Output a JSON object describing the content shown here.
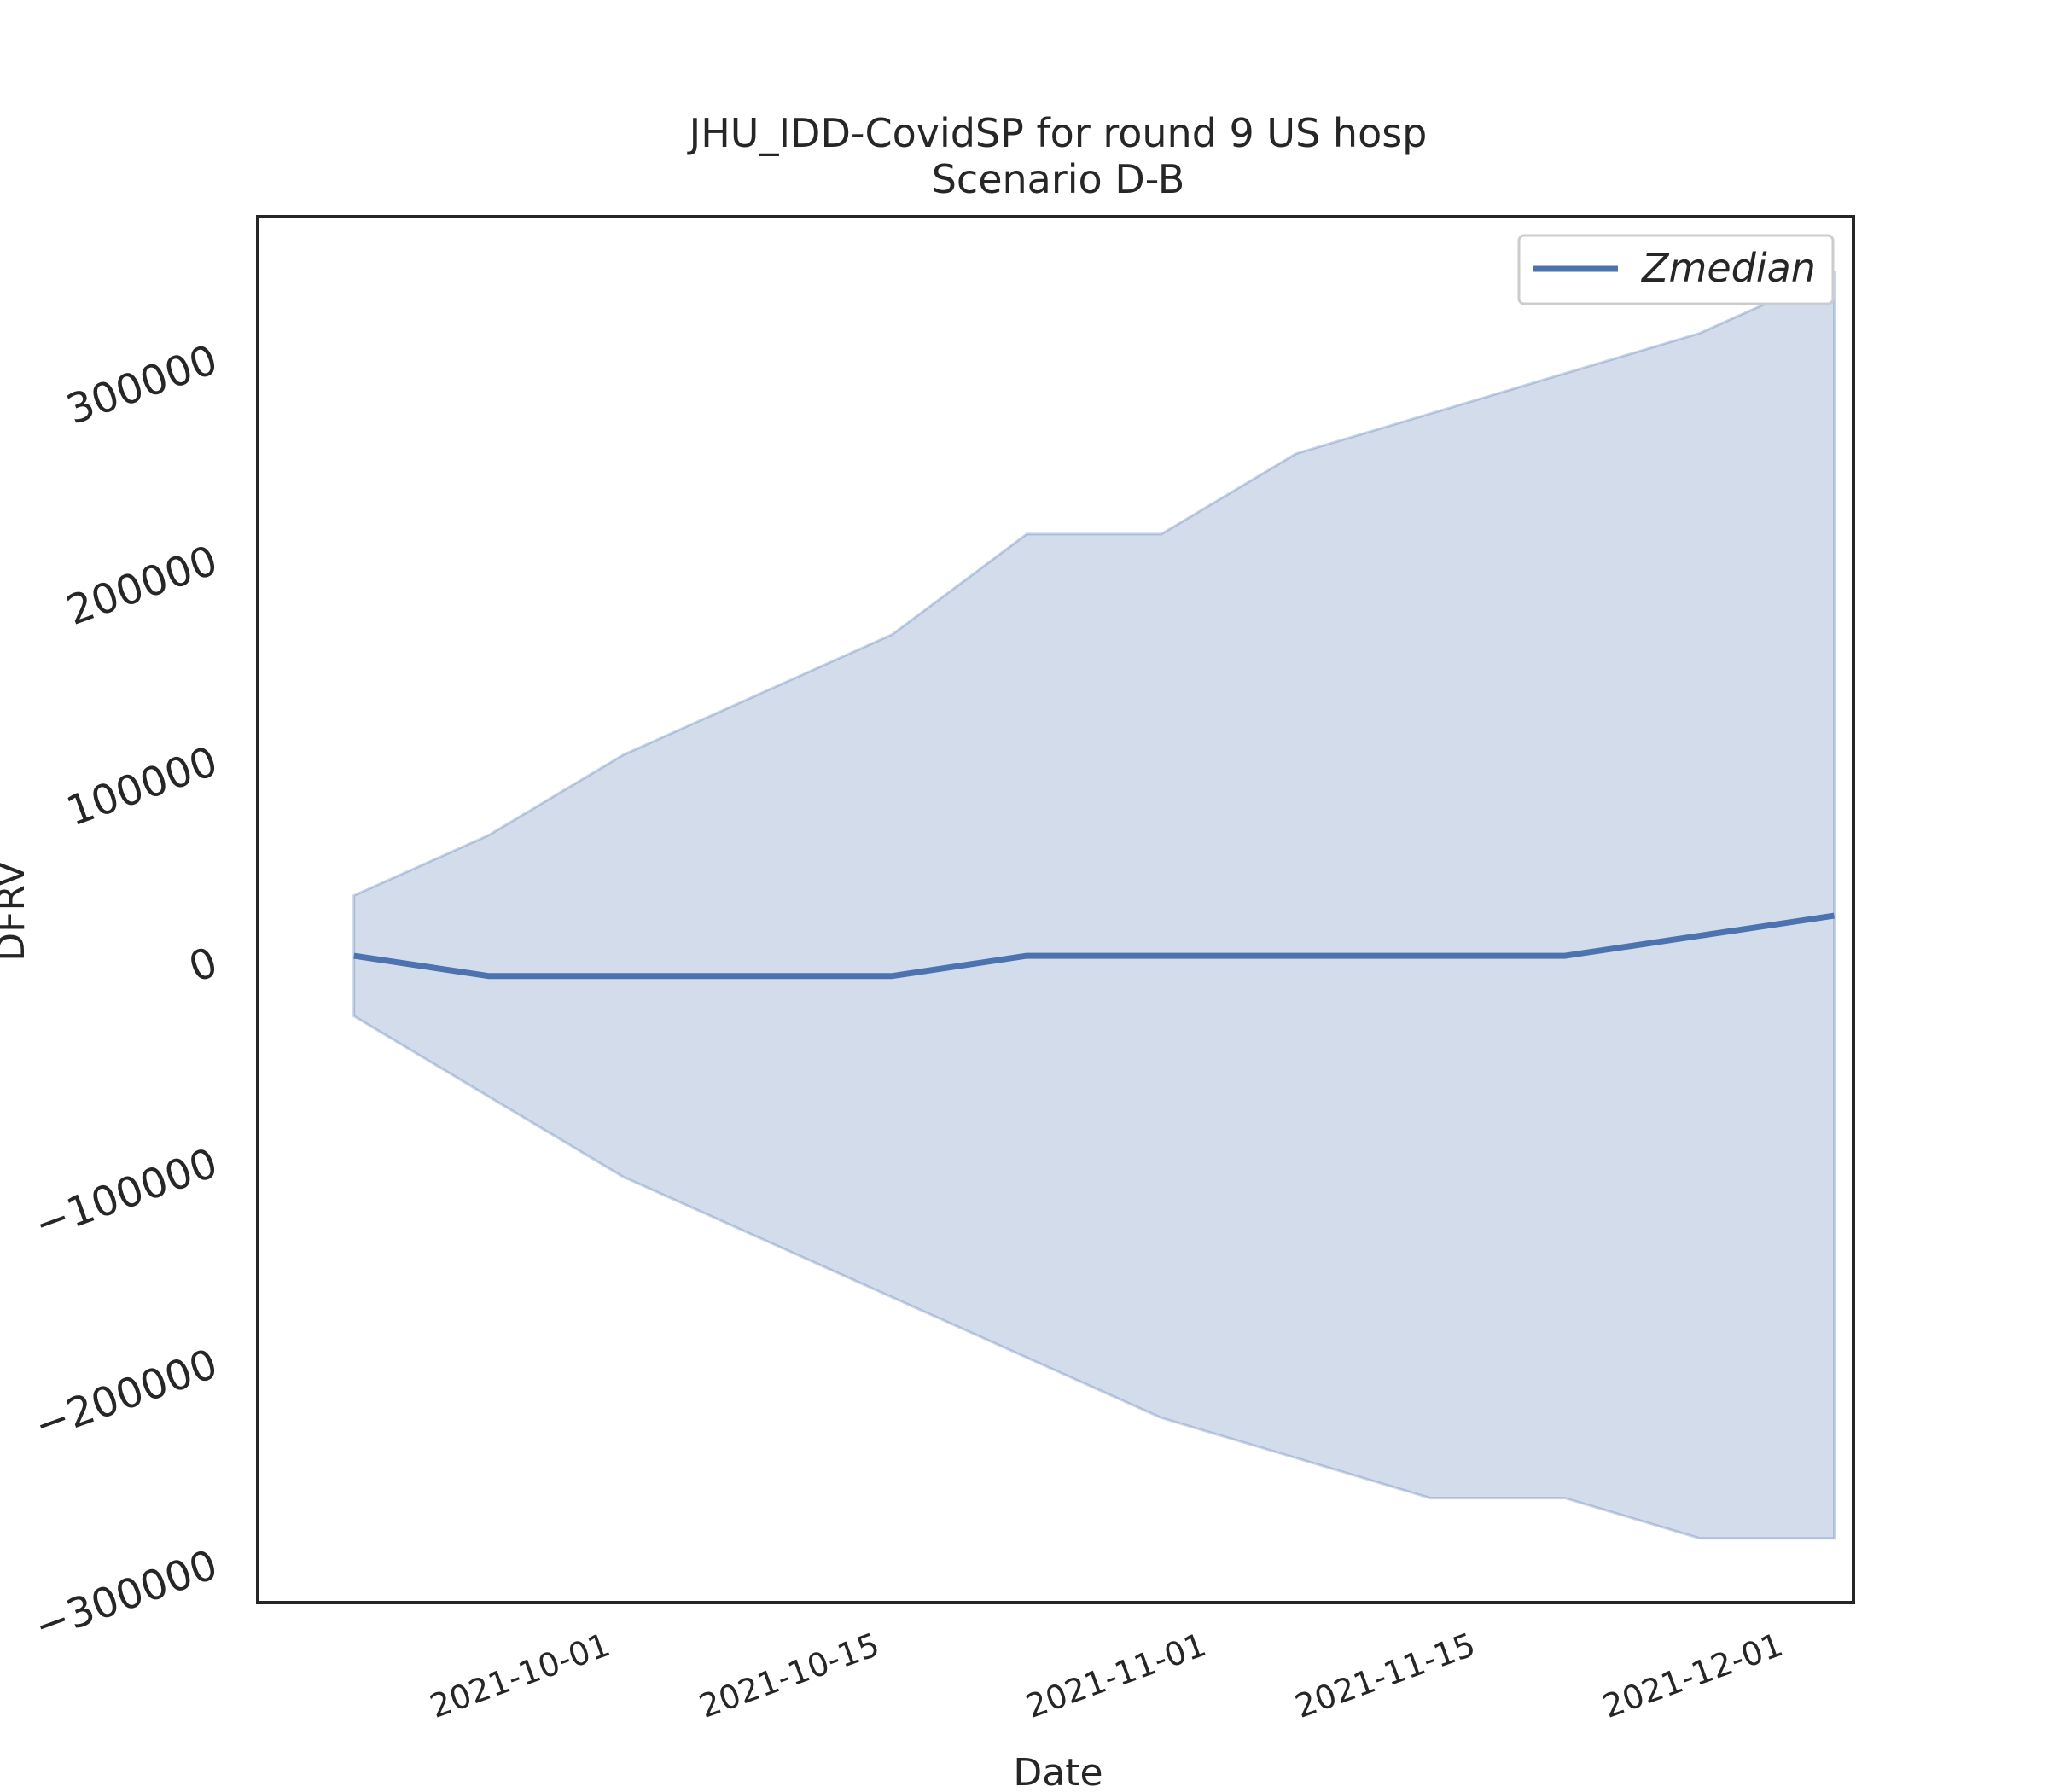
{
  "chart_data": {
    "type": "line",
    "title": "JHU_IDD-CovidSP for round 9 US hosp",
    "subtitle": "Scenario D-B",
    "xlabel": "Date",
    "ylabel": "DFRV",
    "ylim": [
      -320000,
      370000
    ],
    "xlim": [
      "2021-09-13",
      "2021-12-05"
    ],
    "yticks": [
      -300000,
      -200000,
      -100000,
      0,
      100000,
      200000,
      300000
    ],
    "ytick_labels": [
      "−300000",
      "−200000",
      "−100000",
      "0",
      "100000",
      "200000",
      "300000"
    ],
    "xticks": [
      "2021-10-01",
      "2021-10-15",
      "2021-11-01",
      "2021-11-15",
      "2021-12-01"
    ],
    "grid": false,
    "legend_position": "top-right",
    "line_color": "#4c72b0",
    "band_color": "#4c72b0",
    "x": [
      "2021-09-18",
      "2021-09-25",
      "2021-10-02",
      "2021-10-09",
      "2021-10-16",
      "2021-10-23",
      "2021-10-30",
      "2021-11-06",
      "2021-11-13",
      "2021-11-20",
      "2021-11-27",
      "2021-12-04"
    ],
    "series": [
      {
        "name": "Zmedian",
        "values": [
          2000,
          -8000,
          -8000,
          -8000,
          -8000,
          2000,
          2000,
          2000,
          2000,
          2000,
          12000,
          22000
        ],
        "lower": [
          -28000,
          -68000,
          -108000,
          -138000,
          -168000,
          -198000,
          -228000,
          -248000,
          -268000,
          -268000,
          -288000,
          -288000
        ],
        "upper": [
          32000,
          62000,
          102000,
          132000,
          162000,
          212000,
          212000,
          252000,
          272000,
          292000,
          312000,
          342000
        ]
      }
    ]
  }
}
